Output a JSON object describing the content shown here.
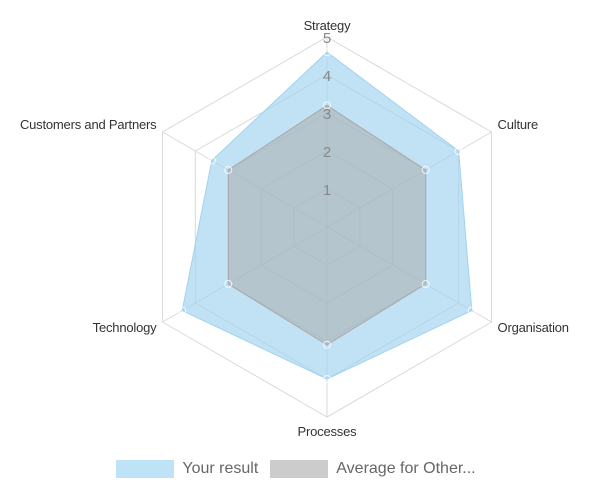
{
  "chart_data": {
    "type": "radar",
    "axes": [
      "Strategy",
      "Culture",
      "Organisation",
      "Processes",
      "Technology",
      "Customers and Partners"
    ],
    "r_ticks": [
      "1",
      "2",
      "3",
      "4",
      "5"
    ],
    "rlim": [
      0,
      5
    ],
    "grid": true,
    "legend_position": "bottom",
    "series": [
      {
        "name": "Your result",
        "values": [
          4.6,
          4.0,
          4.4,
          4.0,
          4.4,
          3.5
        ],
        "color": "#9fd3f0"
      },
      {
        "name": "Average for Other...",
        "values": [
          3.2,
          3.0,
          3.0,
          3.1,
          3.0,
          3.0
        ],
        "color": "#a8a8a8"
      }
    ]
  },
  "legend": {
    "items": [
      {
        "label": "Your result",
        "color": "#bfe3f6"
      },
      {
        "label": "Average for Other...",
        "color": "#cccccc"
      }
    ]
  }
}
